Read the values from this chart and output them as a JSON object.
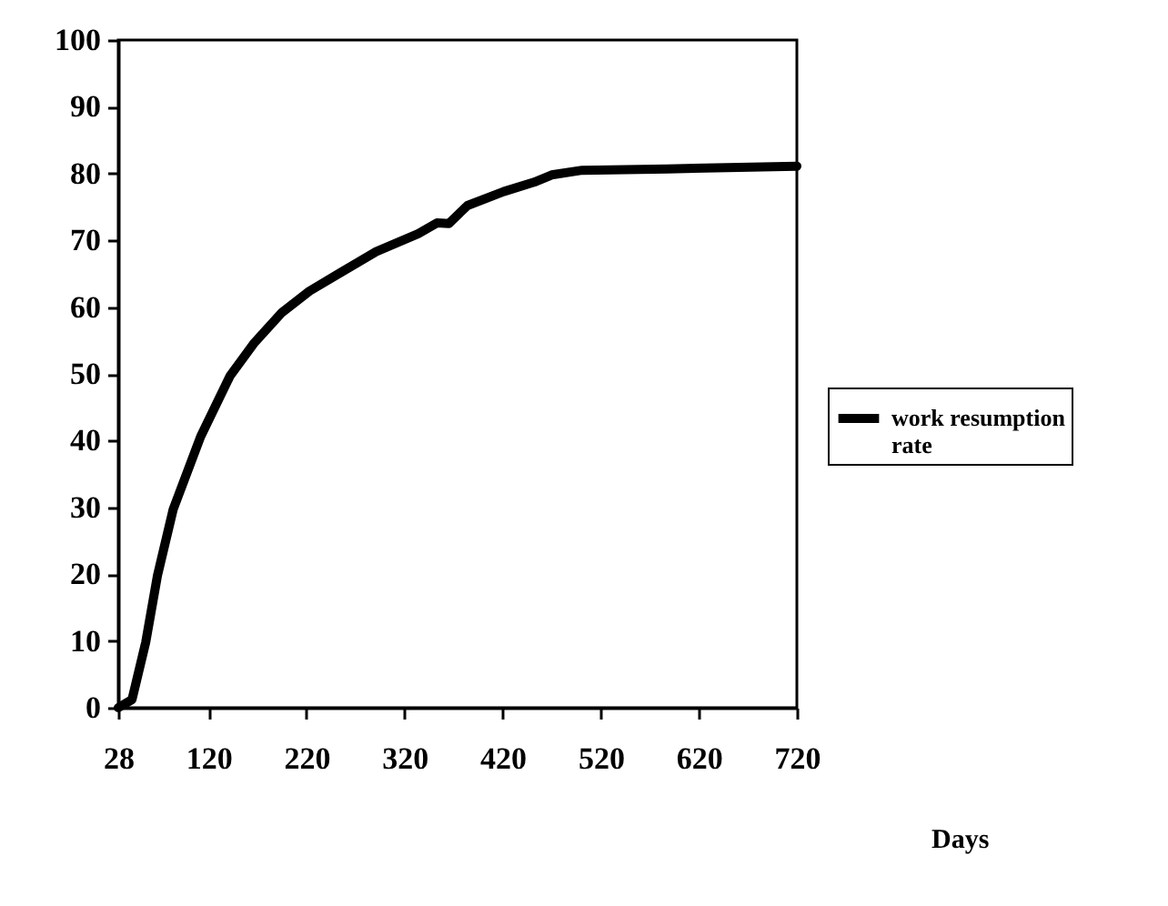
{
  "chart_data": {
    "type": "line",
    "annotations": [
      "Days"
    ],
    "x": [
      28,
      42,
      56,
      68,
      84,
      112,
      142,
      167,
      195,
      223,
      254,
      291,
      334,
      353,
      365,
      384,
      421,
      452,
      470,
      501,
      588,
      720
    ],
    "series": [
      {
        "name": "work resumption rate",
        "color": "#000000",
        "values": [
          0,
          1.2,
          9.8,
          19.8,
          29.7,
          40.6,
          49.7,
          54.7,
          59.2,
          62.4,
          65.1,
          68.3,
          71,
          72.6,
          72.5,
          75.2,
          77.3,
          78.7,
          79.8,
          80.5,
          80.7,
          81.1
        ]
      }
    ],
    "xlim": [
      28,
      720
    ],
    "xticks": [
      28,
      120,
      220,
      320,
      420,
      520,
      620,
      720
    ],
    "ylim": [
      0,
      100
    ],
    "yticks": [
      0,
      10,
      20,
      30,
      40,
      50,
      60,
      70,
      80,
      90,
      100
    ],
    "grid": false,
    "legend": "right",
    "marker": "none",
    "line_style": "solid"
  }
}
